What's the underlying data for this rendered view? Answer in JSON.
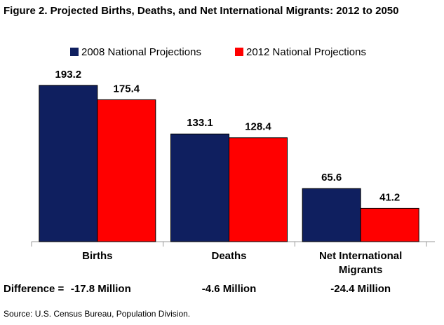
{
  "chart_data": {
    "type": "bar",
    "title": "Figure 2. Projected Births, Deaths, and Net International Migrants: 2012 to 2050",
    "categories": [
      "Births",
      "Deaths",
      "Net International Migrants"
    ],
    "series": [
      {
        "name": "2008 National Projections",
        "color": "#0f1f5f",
        "values": [
          193.2,
          133.1,
          65.6
        ]
      },
      {
        "name": "2012 National Projections",
        "color": "#ff0000",
        "values": [
          175.4,
          128.4,
          41.2
        ]
      }
    ],
    "ylim": [
      0,
      200
    ],
    "difference_label": "Difference =",
    "differences": [
      "-17.8 Million",
      "-4.6 Million",
      "-24.4 Million"
    ],
    "source": "Source: U.S. Census Bureau, Population Division."
  }
}
